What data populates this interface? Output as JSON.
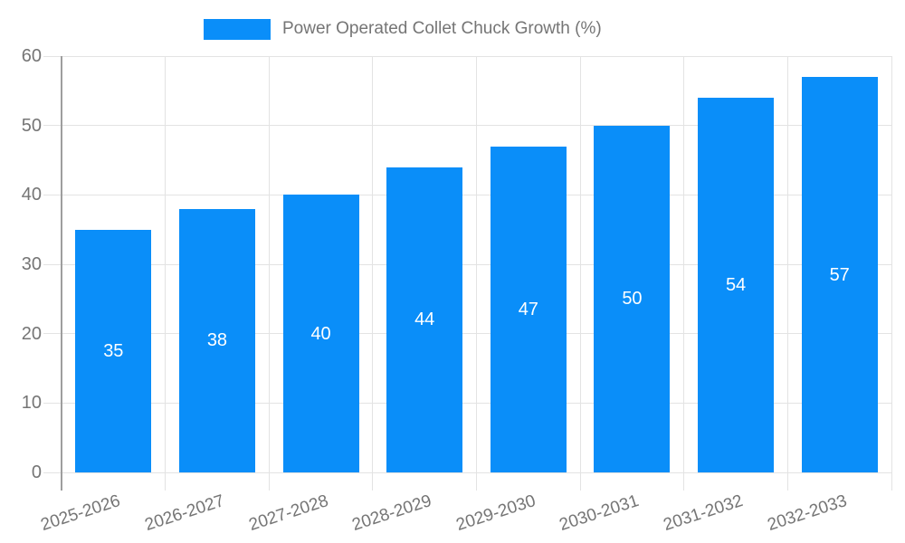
{
  "chart_data": {
    "type": "bar",
    "title": "Power Operated Collet Chuck Growth (%)",
    "categories": [
      "2025-2026",
      "2026-2027",
      "2027-2028",
      "2028-2029",
      "2029-2030",
      "2030-2031",
      "2031-2032",
      "2032-2033"
    ],
    "series": [
      {
        "name": "Power Operated Collet Chuck Growth (%)",
        "values": [
          35,
          38,
          40,
          44,
          47,
          50,
          54,
          57
        ]
      }
    ],
    "xlabel": "",
    "ylabel": "",
    "ylim": [
      0,
      60
    ],
    "yticks": [
      0,
      10,
      20,
      30,
      40,
      50,
      60
    ],
    "grid": true,
    "legend_position": "top",
    "value_labels": "centered-inside-bars",
    "colors": {
      "bar": "#0a8ef9",
      "grid": "#e3e3e3",
      "axis": "#9e9e9e",
      "text": "#757575",
      "value_label": "#ffffff"
    }
  },
  "legend": {
    "label": "Power Operated Collet Chuck Growth (%)"
  }
}
